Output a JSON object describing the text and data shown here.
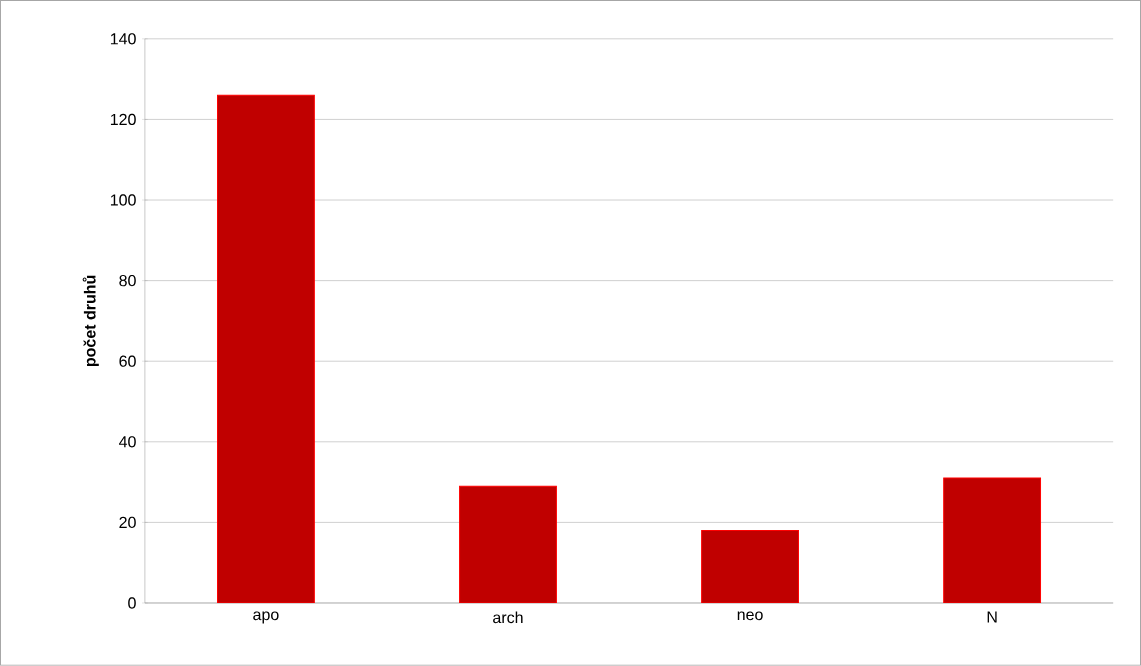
{
  "chart_data": {
    "type": "bar",
    "ylabel": "počet druhů",
    "categories": [
      "apo",
      "arch",
      "neo",
      "N"
    ],
    "values": [
      126,
      29,
      18,
      31
    ],
    "color": "#c00000",
    "ylim": [
      0,
      140
    ],
    "yticks": [
      0,
      20,
      40,
      60,
      80,
      100,
      120,
      140
    ],
    "grid": "y"
  }
}
